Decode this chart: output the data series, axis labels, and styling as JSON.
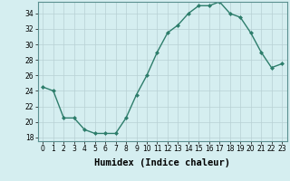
{
  "x": [
    0,
    1,
    2,
    3,
    4,
    5,
    6,
    7,
    8,
    9,
    10,
    11,
    12,
    13,
    14,
    15,
    16,
    17,
    18,
    19,
    20,
    21,
    22,
    23
  ],
  "y": [
    24.5,
    24.0,
    20.5,
    20.5,
    19.0,
    18.5,
    18.5,
    18.5,
    20.5,
    23.5,
    26.0,
    29.0,
    31.5,
    32.5,
    34.0,
    35.0,
    35.0,
    35.5,
    34.0,
    33.5,
    31.5,
    29.0,
    27.0,
    27.5
  ],
  "line_color": "#2d7d6b",
  "marker": "D",
  "marker_size": 2.0,
  "line_width": 1.0,
  "xlabel": "Humidex (Indice chaleur)",
  "xlim": [
    -0.5,
    23.5
  ],
  "ylim": [
    17.5,
    35.5
  ],
  "yticks": [
    18,
    20,
    22,
    24,
    26,
    28,
    30,
    32,
    34
  ],
  "xticks": [
    0,
    1,
    2,
    3,
    4,
    5,
    6,
    7,
    8,
    9,
    10,
    11,
    12,
    13,
    14,
    15,
    16,
    17,
    18,
    19,
    20,
    21,
    22,
    23
  ],
  "xtick_labels": [
    "0",
    "1",
    "2",
    "3",
    "4",
    "5",
    "6",
    "7",
    "8",
    "9",
    "10",
    "11",
    "12",
    "13",
    "14",
    "15",
    "16",
    "17",
    "18",
    "19",
    "20",
    "21",
    "22",
    "23"
  ],
  "bg_color": "#d5eef0",
  "grid_color": "#b8d0d4",
  "tick_label_fontsize": 5.5,
  "xlabel_fontsize": 7.5
}
